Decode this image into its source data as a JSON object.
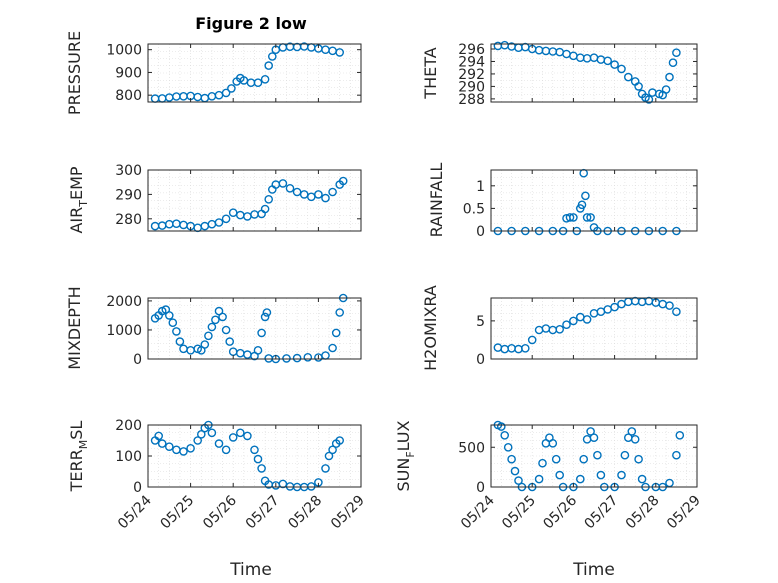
{
  "figure": {
    "title": "Figure 2 low",
    "xlabel": "Time"
  },
  "colors": {
    "marker": "#0072BD",
    "axis": "#262626",
    "grid": "#d9d9d9",
    "background": "#ffffff"
  },
  "chart_data": [
    {
      "type": "scatter",
      "name": "PRESSURE",
      "ylabel": "PRESSURE",
      "xlim": [
        "05/24",
        "05/29"
      ],
      "ylim": [
        770,
        1025
      ],
      "yticks": [
        800,
        900,
        1000
      ],
      "xtick_labels_shown": false,
      "points": [
        [
          "05/24 04:00",
          785
        ],
        [
          "05/24 08:00",
          786
        ],
        [
          "05/24 12:00",
          790
        ],
        [
          "05/24 16:00",
          794
        ],
        [
          "05/24 20:00",
          795
        ],
        [
          "05/25 00:00",
          797
        ],
        [
          "05/25 04:00",
          792
        ],
        [
          "05/25 08:00",
          787
        ],
        [
          "05/25 12:00",
          795
        ],
        [
          "05/25 16:00",
          800
        ],
        [
          "05/25 20:00",
          810
        ],
        [
          "05/25 23:00",
          830
        ],
        [
          "05/26 02:00",
          860
        ],
        [
          "05/26 04:00",
          875
        ],
        [
          "05/26 06:00",
          865
        ],
        [
          "05/26 10:00",
          855
        ],
        [
          "05/26 14:00",
          855
        ],
        [
          "05/26 18:00",
          870
        ],
        [
          "05/26 20:00",
          930
        ],
        [
          "05/26 22:00",
          970
        ],
        [
          "05/27 00:00",
          1000
        ],
        [
          "05/27 04:00",
          1010
        ],
        [
          "05/27 08:00",
          1013
        ],
        [
          "05/27 12:00",
          1012
        ],
        [
          "05/27 16:00",
          1014
        ],
        [
          "05/27 20:00",
          1010
        ],
        [
          "05/28 00:00",
          1005
        ],
        [
          "05/28 04:00",
          1000
        ],
        [
          "05/28 08:00",
          995
        ],
        [
          "05/28 12:00",
          988
        ]
      ]
    },
    {
      "type": "scatter",
      "name": "THETA",
      "ylabel": "THETA",
      "xlim": [
        "05/24",
        "05/29"
      ],
      "ylim": [
        287.5,
        296.8
      ],
      "yticks": [
        288,
        290,
        292,
        294,
        296
      ],
      "xtick_labels_shown": false,
      "points": [
        [
          "05/24 04:00",
          296.5
        ],
        [
          "05/24 08:00",
          296.6
        ],
        [
          "05/24 12:00",
          296.4
        ],
        [
          "05/24 16:00",
          296.2
        ],
        [
          "05/24 20:00",
          296.3
        ],
        [
          "05/25 00:00",
          296.0
        ],
        [
          "05/25 04:00",
          295.8
        ],
        [
          "05/25 08:00",
          295.7
        ],
        [
          "05/25 12:00",
          295.6
        ],
        [
          "05/25 16:00",
          295.5
        ],
        [
          "05/25 20:00",
          295.2
        ],
        [
          "05/26 00:00",
          294.9
        ],
        [
          "05/26 04:00",
          294.6
        ],
        [
          "05/26 08:00",
          294.5
        ],
        [
          "05/26 12:00",
          294.6
        ],
        [
          "05/26 16:00",
          294.3
        ],
        [
          "05/26 20:00",
          294.1
        ],
        [
          "05/27 00:00",
          293.5
        ],
        [
          "05/27 04:00",
          292.8
        ],
        [
          "05/27 08:00",
          291.5
        ],
        [
          "05/27 12:00",
          290.8
        ],
        [
          "05/27 14:00",
          290.0
        ],
        [
          "05/27 16:00",
          288.8
        ],
        [
          "05/27 18:00",
          288.2
        ],
        [
          "05/27 20:00",
          287.9
        ],
        [
          "05/27 22:00",
          289.0
        ],
        [
          "05/28 02:00",
          288.8
        ],
        [
          "05/28 04:00",
          288.6
        ],
        [
          "05/28 06:00",
          289.5
        ],
        [
          "05/28 08:00",
          291.5
        ],
        [
          "05/28 10:00",
          293.8
        ],
        [
          "05/28 12:00",
          295.4
        ]
      ]
    },
    {
      "type": "scatter",
      "name": "AIR_TEMP",
      "ylabel": "AIR_TEMP",
      "ylabel_sub": "T",
      "xlim": [
        "05/24",
        "05/29"
      ],
      "ylim": [
        275,
        300
      ],
      "yticks": [
        280,
        290,
        300
      ],
      "xtick_labels_shown": false,
      "points": [
        [
          "05/24 04:00",
          277
        ],
        [
          "05/24 08:00",
          277.2
        ],
        [
          "05/24 12:00",
          277.8
        ],
        [
          "05/24 16:00",
          278
        ],
        [
          "05/24 20:00",
          277.5
        ],
        [
          "05/25 00:00",
          277
        ],
        [
          "05/25 04:00",
          276.3
        ],
        [
          "05/25 08:00",
          277
        ],
        [
          "05/25 12:00",
          277.8
        ],
        [
          "05/25 16:00",
          278.5
        ],
        [
          "05/25 20:00",
          280
        ],
        [
          "05/26 00:00",
          282.5
        ],
        [
          "05/26 04:00",
          281.5
        ],
        [
          "05/26 08:00",
          281
        ],
        [
          "05/26 12:00",
          281.8
        ],
        [
          "05/26 16:00",
          282
        ],
        [
          "05/26 18:00",
          284
        ],
        [
          "05/26 20:00",
          288
        ],
        [
          "05/26 22:00",
          292
        ],
        [
          "05/27 00:00",
          294
        ],
        [
          "05/27 04:00",
          294.5
        ],
        [
          "05/27 08:00",
          292.5
        ],
        [
          "05/27 12:00",
          291
        ],
        [
          "05/27 16:00",
          290
        ],
        [
          "05/27 20:00",
          289
        ],
        [
          "05/28 00:00",
          290
        ],
        [
          "05/28 04:00",
          288.5
        ],
        [
          "05/28 08:00",
          291
        ],
        [
          "05/28 12:00",
          294
        ],
        [
          "05/28 14:00",
          295.5
        ]
      ]
    },
    {
      "type": "scatter",
      "name": "RAINFALL",
      "ylabel": "RAINFALL",
      "xlim": [
        "05/24",
        "05/29"
      ],
      "ylim": [
        0,
        1.35
      ],
      "yticks": [
        0,
        0.5,
        1
      ],
      "xtick_labels_shown": false,
      "points": [
        [
          "05/24 04:00",
          0
        ],
        [
          "05/24 12:00",
          0
        ],
        [
          "05/24 20:00",
          0
        ],
        [
          "05/25 04:00",
          0
        ],
        [
          "05/25 12:00",
          0
        ],
        [
          "05/25 18:00",
          0
        ],
        [
          "05/25 20:00",
          0.28
        ],
        [
          "05/25 22:00",
          0.3
        ],
        [
          "05/26 00:00",
          0.3
        ],
        [
          "05/26 02:00",
          0
        ],
        [
          "05/26 04:00",
          0.5
        ],
        [
          "05/26 05:00",
          0.58
        ],
        [
          "05/26 06:00",
          1.28
        ],
        [
          "05/26 07:00",
          0.78
        ],
        [
          "05/26 08:00",
          0.3
        ],
        [
          "05/26 10:00",
          0.3
        ],
        [
          "05/26 12:00",
          0.08
        ],
        [
          "05/26 14:00",
          0
        ],
        [
          "05/26 20:00",
          0
        ],
        [
          "05/27 04:00",
          0
        ],
        [
          "05/27 12:00",
          0
        ],
        [
          "05/27 20:00",
          0
        ],
        [
          "05/28 04:00",
          0
        ],
        [
          "05/28 12:00",
          0
        ]
      ]
    },
    {
      "type": "scatter",
      "name": "MIXDEPTH",
      "ylabel": "MIXDEPTH",
      "xlim": [
        "05/24",
        "05/29"
      ],
      "ylim": [
        0,
        2100
      ],
      "yticks": [
        0,
        1000,
        2000
      ],
      "xtick_labels_shown": false,
      "points": [
        [
          "05/24 04:00",
          1400
        ],
        [
          "05/24 06:00",
          1500
        ],
        [
          "05/24 08:00",
          1650
        ],
        [
          "05/24 10:00",
          1700
        ],
        [
          "05/24 12:00",
          1500
        ],
        [
          "05/24 14:00",
          1250
        ],
        [
          "05/24 16:00",
          950
        ],
        [
          "05/24 18:00",
          600
        ],
        [
          "05/24 20:00",
          350
        ],
        [
          "05/25 00:00",
          300
        ],
        [
          "05/25 04:00",
          350
        ],
        [
          "05/25 06:00",
          300
        ],
        [
          "05/25 08:00",
          500
        ],
        [
          "05/25 10:00",
          800
        ],
        [
          "05/25 12:00",
          1100
        ],
        [
          "05/25 14:00",
          1350
        ],
        [
          "05/25 16:00",
          1650
        ],
        [
          "05/25 18:00",
          1450
        ],
        [
          "05/25 20:00",
          1000
        ],
        [
          "05/25 22:00",
          600
        ],
        [
          "05/26 00:00",
          250
        ],
        [
          "05/26 04:00",
          200
        ],
        [
          "05/26 08:00",
          150
        ],
        [
          "05/26 12:00",
          100
        ],
        [
          "05/26 14:00",
          300
        ],
        [
          "05/26 16:00",
          900
        ],
        [
          "05/26 18:00",
          1450
        ],
        [
          "05/26 19:00",
          1600
        ],
        [
          "05/26 20:00",
          20
        ],
        [
          "05/27 00:00",
          0
        ],
        [
          "05/27 06:00",
          20
        ],
        [
          "05/27 12:00",
          30
        ],
        [
          "05/27 18:00",
          60
        ],
        [
          "05/28 00:00",
          50
        ],
        [
          "05/28 04:00",
          120
        ],
        [
          "05/28 08:00",
          380
        ],
        [
          "05/28 10:00",
          900
        ],
        [
          "05/28 12:00",
          1600
        ],
        [
          "05/28 14:00",
          2100
        ]
      ]
    },
    {
      "type": "scatter",
      "name": "H2OMIXRA",
      "ylabel": "H2OMIXRA",
      "xlim": [
        "05/24",
        "05/29"
      ],
      "ylim": [
        0,
        8
      ],
      "yticks": [
        0,
        5
      ],
      "xtick_labels_shown": false,
      "points": [
        [
          "05/24 04:00",
          1.5
        ],
        [
          "05/24 08:00",
          1.3
        ],
        [
          "05/24 12:00",
          1.4
        ],
        [
          "05/24 16:00",
          1.3
        ],
        [
          "05/24 20:00",
          1.4
        ],
        [
          "05/25 00:00",
          2.5
        ],
        [
          "05/25 04:00",
          3.8
        ],
        [
          "05/25 08:00",
          4.0
        ],
        [
          "05/25 12:00",
          3.8
        ],
        [
          "05/25 16:00",
          3.9
        ],
        [
          "05/25 20:00",
          4.5
        ],
        [
          "05/26 00:00",
          5.0
        ],
        [
          "05/26 04:00",
          5.5
        ],
        [
          "05/26 08:00",
          5.2
        ],
        [
          "05/26 12:00",
          6.0
        ],
        [
          "05/26 16:00",
          6.2
        ],
        [
          "05/26 20:00",
          6.5
        ],
        [
          "05/27 00:00",
          6.8
        ],
        [
          "05/27 04:00",
          7.2
        ],
        [
          "05/27 08:00",
          7.5
        ],
        [
          "05/27 12:00",
          7.6
        ],
        [
          "05/27 16:00",
          7.5
        ],
        [
          "05/27 20:00",
          7.6
        ],
        [
          "05/28 00:00",
          7.4
        ],
        [
          "05/28 04:00",
          7.2
        ],
        [
          "05/28 08:00",
          7.0
        ],
        [
          "05/28 12:00",
          6.2
        ]
      ]
    },
    {
      "type": "scatter",
      "name": "TERR_MSL",
      "ylabel": "TERR_MSL",
      "ylabel_sub": "M",
      "xlim": [
        "05/24",
        "05/29"
      ],
      "ylim": [
        0,
        200
      ],
      "yticks": [
        0,
        100,
        200
      ],
      "xtick_labels": [
        "05/24",
        "05/25",
        "05/26",
        "05/27",
        "05/28",
        "05/29"
      ],
      "points": [
        [
          "05/24 04:00",
          150
        ],
        [
          "05/24 06:00",
          165
        ],
        [
          "05/24 08:00",
          140
        ],
        [
          "05/24 12:00",
          130
        ],
        [
          "05/24 16:00",
          120
        ],
        [
          "05/24 20:00",
          115
        ],
        [
          "05/25 00:00",
          125
        ],
        [
          "05/25 04:00",
          150
        ],
        [
          "05/25 06:00",
          170
        ],
        [
          "05/25 08:00",
          190
        ],
        [
          "05/25 10:00",
          200
        ],
        [
          "05/25 12:00",
          175
        ],
        [
          "05/25 16:00",
          140
        ],
        [
          "05/25 20:00",
          120
        ],
        [
          "05/26 00:00",
          160
        ],
        [
          "05/26 04:00",
          175
        ],
        [
          "05/26 08:00",
          165
        ],
        [
          "05/26 12:00",
          120
        ],
        [
          "05/26 14:00",
          90
        ],
        [
          "05/26 16:00",
          60
        ],
        [
          "05/26 18:00",
          20
        ],
        [
          "05/26 20:00",
          8
        ],
        [
          "05/27 00:00",
          5
        ],
        [
          "05/27 04:00",
          10
        ],
        [
          "05/27 08:00",
          2
        ],
        [
          "05/27 12:00",
          0
        ],
        [
          "05/27 16:00",
          0
        ],
        [
          "05/27 20:00",
          2
        ],
        [
          "05/28 00:00",
          15
        ],
        [
          "05/28 04:00",
          60
        ],
        [
          "05/28 06:00",
          100
        ],
        [
          "05/28 08:00",
          120
        ],
        [
          "05/28 10:00",
          140
        ],
        [
          "05/28 12:00",
          150
        ]
      ]
    },
    {
      "type": "scatter",
      "name": "SUN_FLUX",
      "ylabel": "SUN_FLUX",
      "ylabel_sub": "F",
      "xlim": [
        "05/24",
        "05/29"
      ],
      "ylim": [
        0,
        780
      ],
      "yticks": [
        0,
        500
      ],
      "xtick_labels": [
        "05/24",
        "05/25",
        "05/26",
        "05/27",
        "05/28",
        "05/29"
      ],
      "points": [
        [
          "05/24 04:00",
          780
        ],
        [
          "05/24 06:00",
          760
        ],
        [
          "05/24 08:00",
          650
        ],
        [
          "05/24 10:00",
          500
        ],
        [
          "05/24 12:00",
          350
        ],
        [
          "05/24 14:00",
          200
        ],
        [
          "05/24 16:00",
          80
        ],
        [
          "05/24 18:00",
          0
        ],
        [
          "05/25 00:00",
          0
        ],
        [
          "05/25 04:00",
          100
        ],
        [
          "05/25 06:00",
          300
        ],
        [
          "05/25 08:00",
          550
        ],
        [
          "05/25 10:00",
          620
        ],
        [
          "05/25 12:00",
          550
        ],
        [
          "05/25 14:00",
          350
        ],
        [
          "05/25 16:00",
          150
        ],
        [
          "05/25 18:00",
          0
        ],
        [
          "05/26 00:00",
          0
        ],
        [
          "05/26 04:00",
          100
        ],
        [
          "05/26 06:00",
          350
        ],
        [
          "05/26 08:00",
          600
        ],
        [
          "05/26 10:00",
          700
        ],
        [
          "05/26 12:00",
          620
        ],
        [
          "05/26 14:00",
          400
        ],
        [
          "05/26 16:00",
          150
        ],
        [
          "05/26 18:00",
          0
        ],
        [
          "05/27 00:00",
          0
        ],
        [
          "05/27 04:00",
          150
        ],
        [
          "05/27 06:00",
          400
        ],
        [
          "05/27 08:00",
          620
        ],
        [
          "05/27 10:00",
          700
        ],
        [
          "05/27 12:00",
          600
        ],
        [
          "05/27 14:00",
          350
        ],
        [
          "05/27 16:00",
          100
        ],
        [
          "05/27 18:00",
          0
        ],
        [
          "05/28 00:00",
          0
        ],
        [
          "05/28 04:00",
          0
        ],
        [
          "05/28 08:00",
          50
        ],
        [
          "05/28 12:00",
          400
        ],
        [
          "05/28 14:00",
          650
        ]
      ]
    }
  ]
}
